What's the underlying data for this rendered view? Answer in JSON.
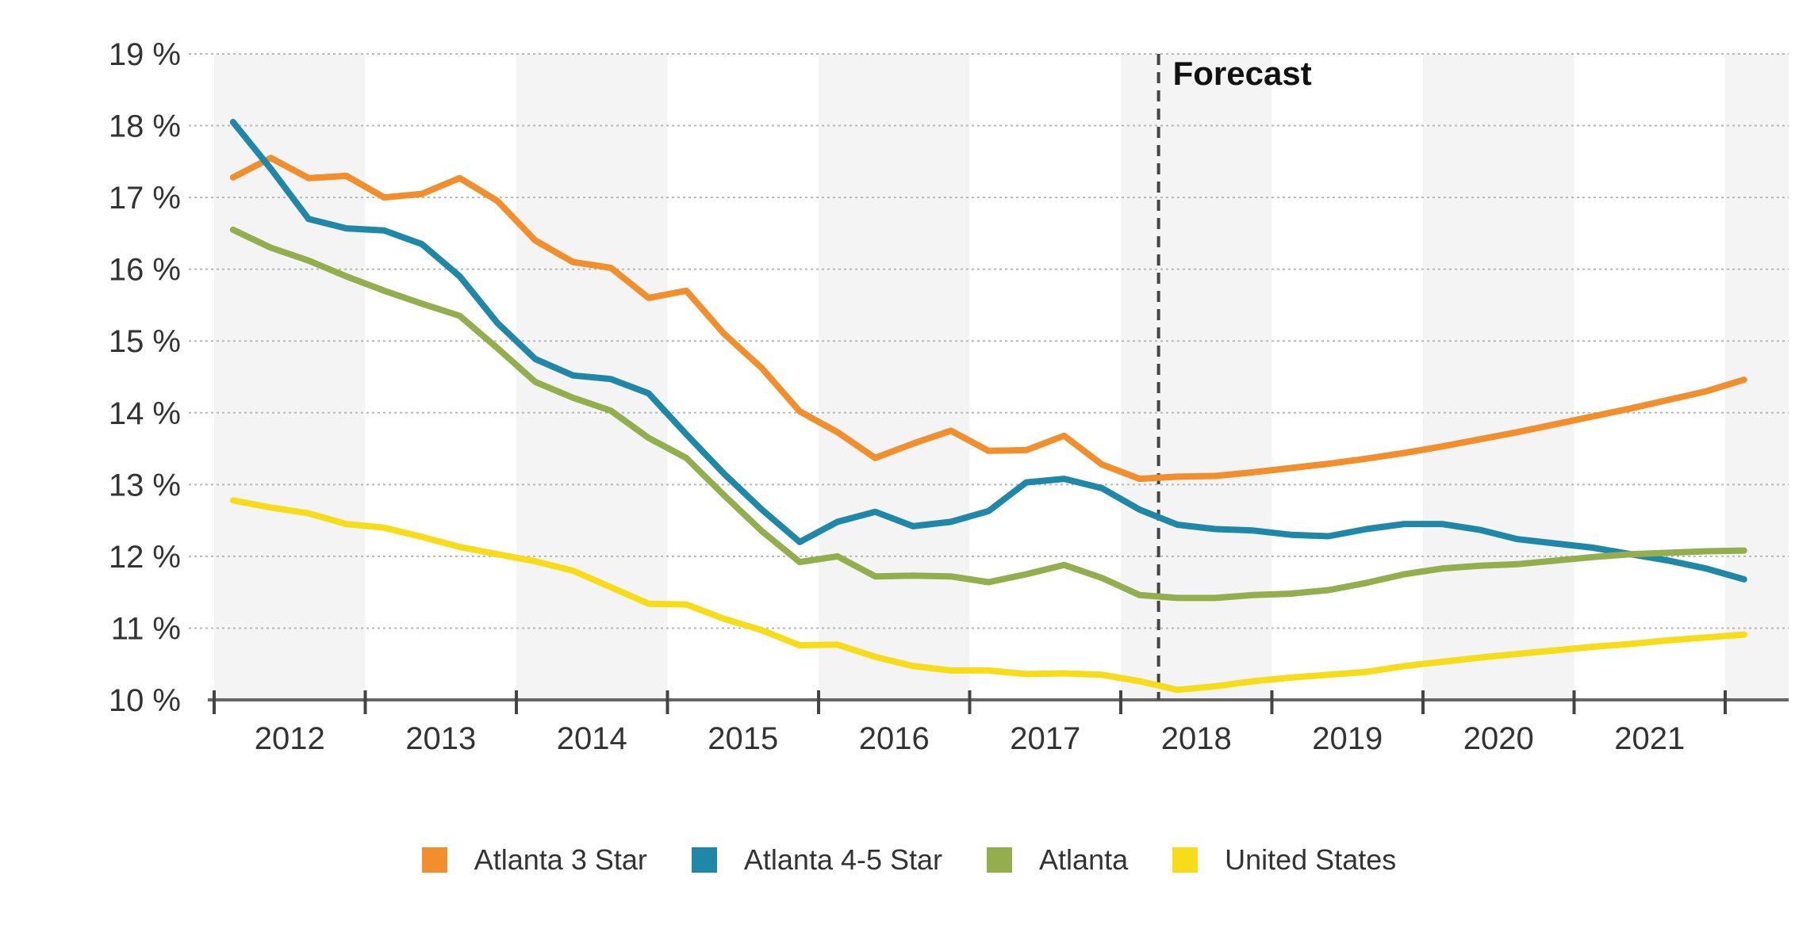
{
  "chart_data": {
    "type": "line",
    "annotation": "Forecast",
    "forecast_start": 2017.75,
    "x_range": [
      2011.5,
      2022.0
    ],
    "x_tick_labels": [
      "2012",
      "2013",
      "2014",
      "2015",
      "2016",
      "2017",
      "2018",
      "2019",
      "2020",
      "2021"
    ],
    "y_tick_labels": [
      "10 %",
      "11 %",
      "12 %",
      "13 %",
      "14 %",
      "15 %",
      "16 %",
      "17 %",
      "18 %",
      "19 %"
    ],
    "ylim": [
      10,
      19
    ],
    "grid": true,
    "legend_position": "bottom",
    "x": [
      2011.625,
      2011.875,
      2012.125,
      2012.375,
      2012.625,
      2012.875,
      2013.125,
      2013.375,
      2013.625,
      2013.875,
      2014.125,
      2014.375,
      2014.625,
      2014.875,
      2015.125,
      2015.375,
      2015.625,
      2015.875,
      2016.125,
      2016.375,
      2016.625,
      2016.875,
      2017.125,
      2017.375,
      2017.625,
      2017.875,
      2018.125,
      2018.375,
      2018.625,
      2018.875,
      2019.125,
      2019.375,
      2019.625,
      2019.875,
      2020.125,
      2020.375,
      2020.625,
      2020.875,
      2021.125,
      2021.375,
      2021.625
    ],
    "series": [
      {
        "name": "Atlanta 3 Star",
        "color": "#F28E2B",
        "values": [
          17.28,
          17.55,
          17.27,
          17.3,
          17.0,
          17.05,
          17.27,
          16.95,
          16.4,
          16.1,
          16.02,
          15.6,
          15.7,
          15.1,
          14.62,
          14.02,
          13.73,
          13.37,
          13.57,
          13.75,
          13.47,
          13.48,
          13.68,
          13.28,
          13.08,
          13.11,
          13.12,
          13.17,
          13.23,
          13.29,
          13.36,
          13.44,
          13.53,
          13.63,
          13.73,
          13.84,
          13.95,
          14.06,
          14.18,
          14.3,
          14.46
        ]
      },
      {
        "name": "Atlanta 4-5 Star",
        "color": "#1F88A8",
        "values": [
          18.05,
          17.4,
          16.7,
          16.57,
          16.54,
          16.35,
          15.9,
          15.25,
          14.75,
          14.52,
          14.47,
          14.27,
          13.7,
          13.15,
          12.65,
          12.2,
          12.48,
          12.62,
          12.42,
          12.48,
          12.63,
          13.03,
          13.08,
          12.95,
          12.65,
          12.44,
          12.38,
          12.36,
          12.3,
          12.28,
          12.38,
          12.45,
          12.45,
          12.37,
          12.24,
          12.18,
          12.12,
          12.03,
          11.94,
          11.83,
          11.68
        ]
      },
      {
        "name": "Atlanta",
        "color": "#94AD4D",
        "values": [
          16.55,
          16.3,
          16.12,
          15.9,
          15.7,
          15.52,
          15.35,
          14.9,
          14.43,
          14.21,
          14.03,
          13.65,
          13.37,
          12.85,
          12.35,
          11.92,
          12.0,
          11.72,
          11.73,
          11.72,
          11.64,
          11.75,
          11.88,
          11.7,
          11.46,
          11.42,
          11.42,
          11.46,
          11.48,
          11.53,
          11.63,
          11.75,
          11.83,
          11.87,
          11.89,
          11.94,
          11.99,
          12.03,
          12.05,
          12.07,
          12.08
        ]
      },
      {
        "name": "United States",
        "color": "#F7DC1A",
        "values": [
          12.78,
          12.68,
          12.6,
          12.45,
          12.4,
          12.27,
          12.13,
          12.03,
          11.93,
          11.8,
          11.57,
          11.34,
          11.33,
          11.13,
          10.97,
          10.76,
          10.77,
          10.6,
          10.47,
          10.41,
          10.41,
          10.36,
          10.37,
          10.35,
          10.26,
          10.14,
          10.19,
          10.26,
          10.31,
          10.35,
          10.39,
          10.47,
          10.53,
          10.59,
          10.64,
          10.69,
          10.74,
          10.78,
          10.83,
          10.87,
          10.91
        ]
      }
    ]
  }
}
